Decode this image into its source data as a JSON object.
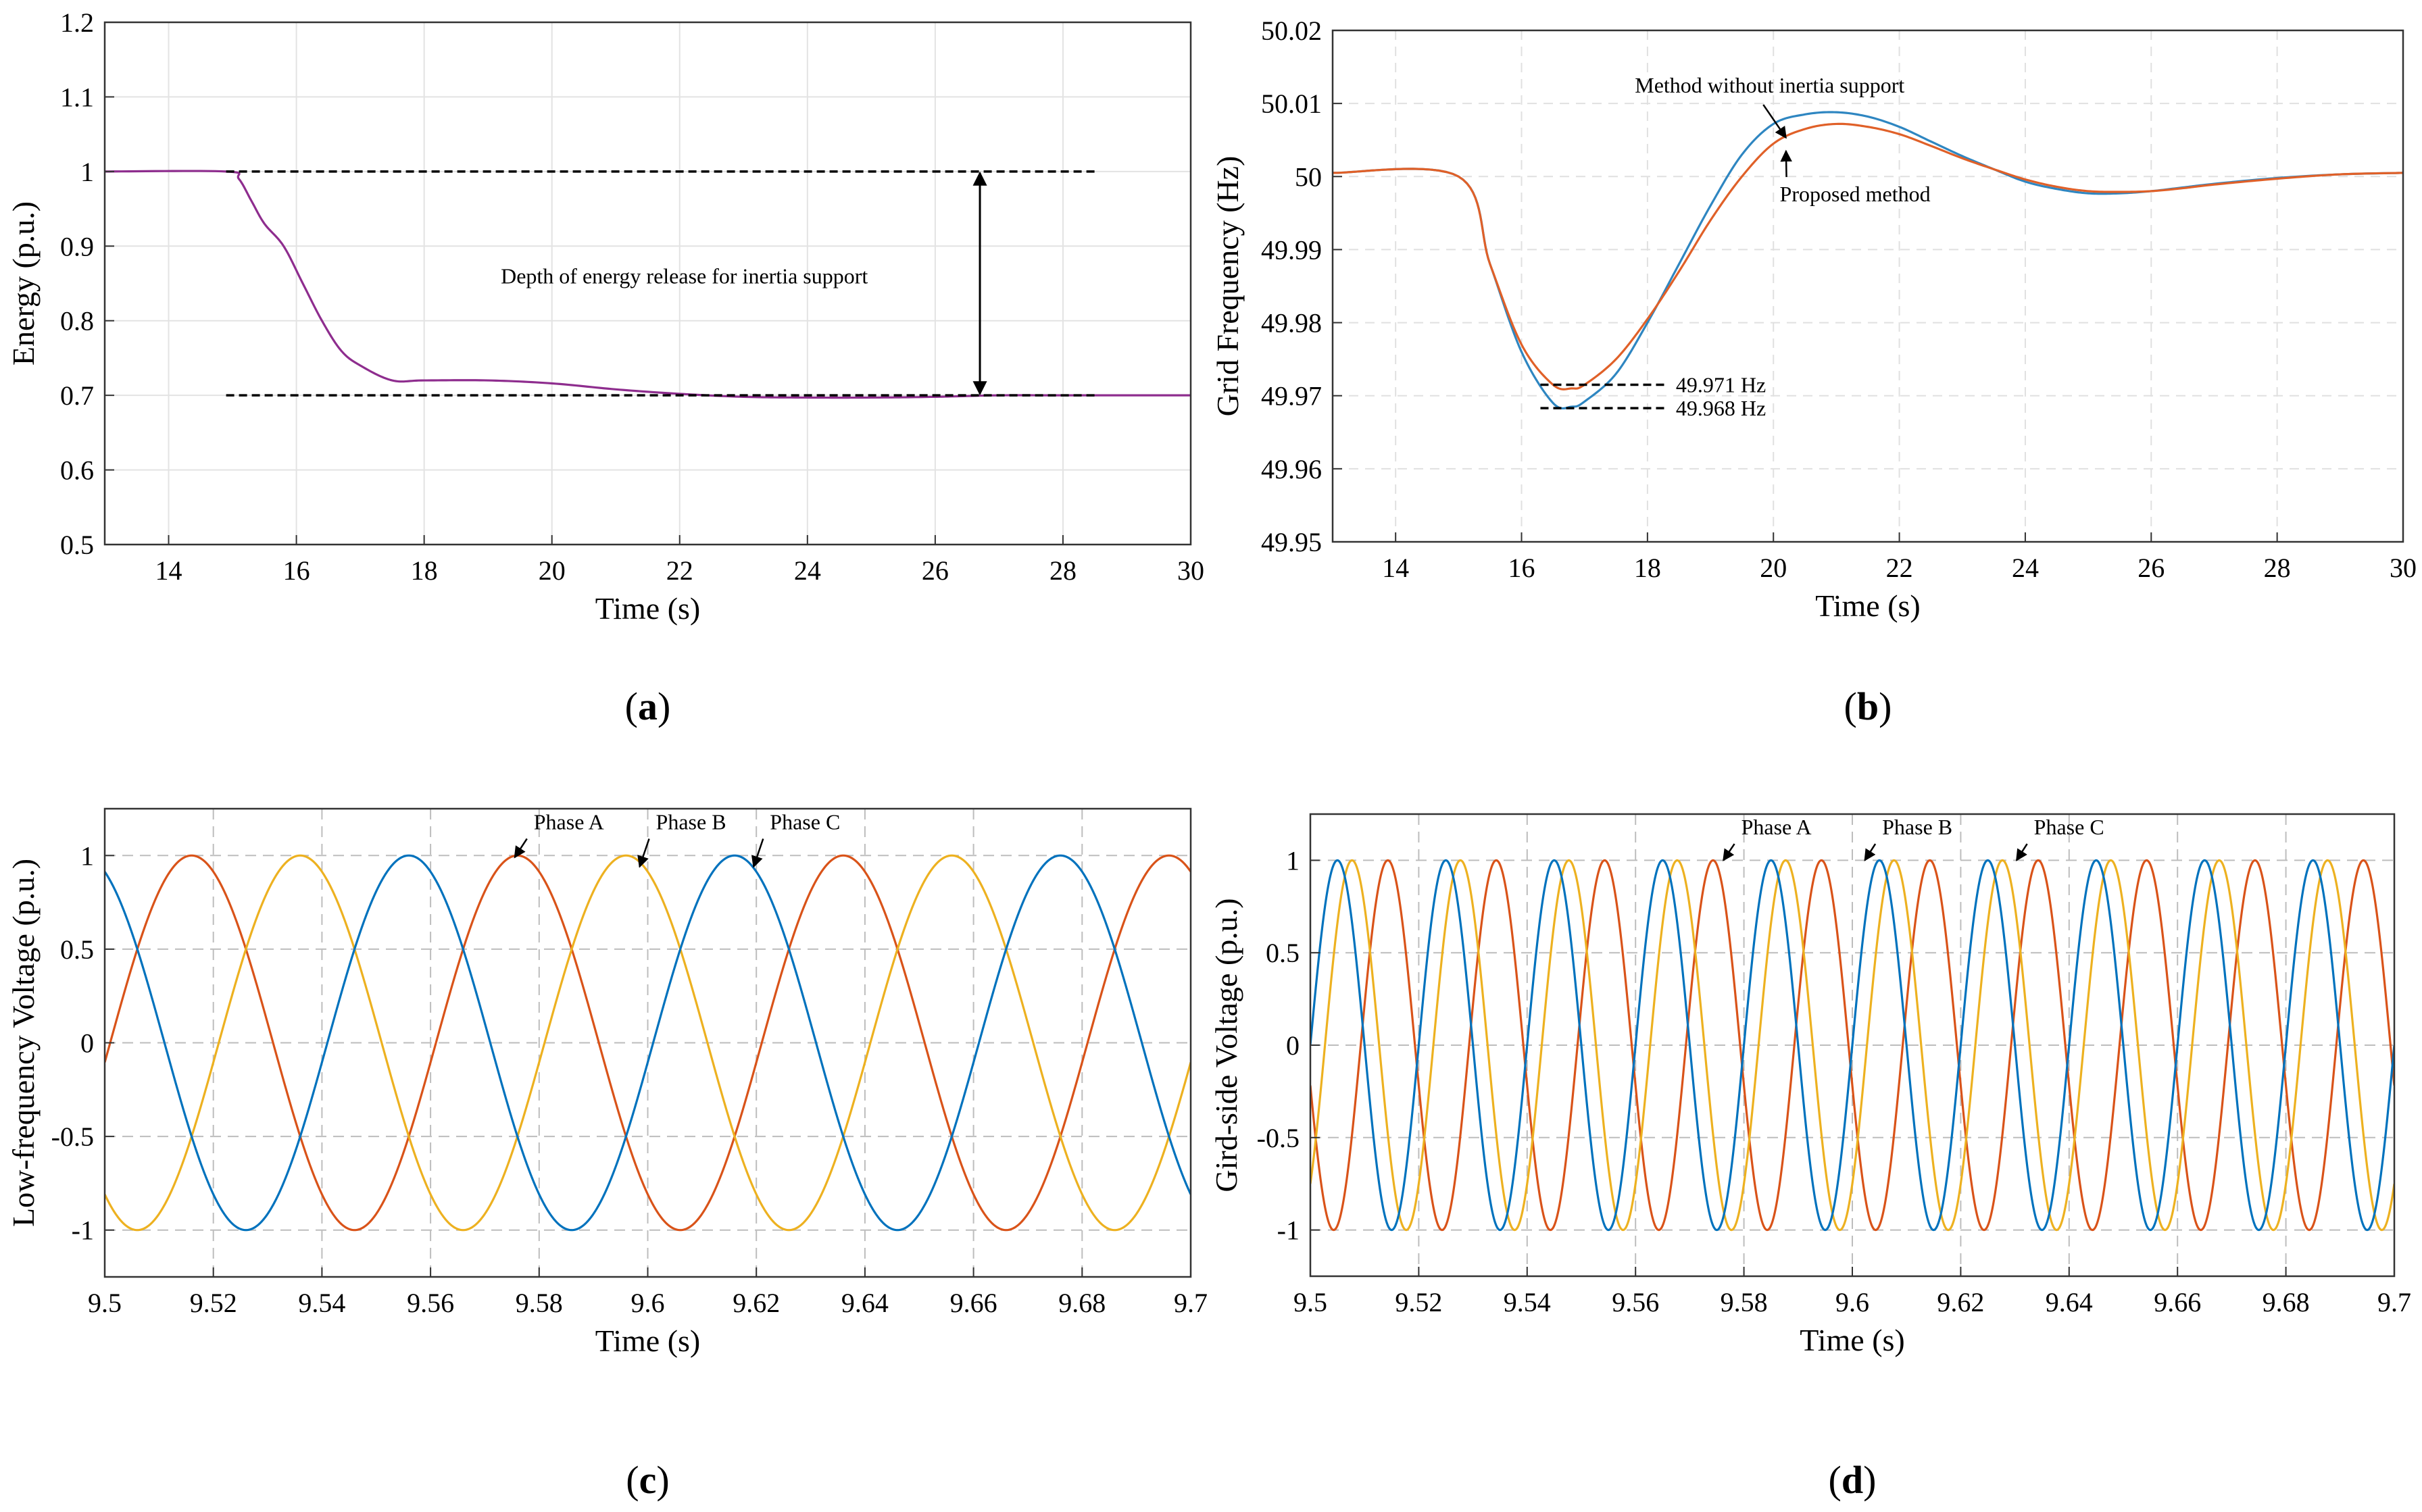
{
  "chart_data": [
    {
      "id": "a",
      "type": "line",
      "caption": "a",
      "xlabel": "Time (s)",
      "ylabel": "Energy (p.u.)",
      "xlim": [
        13,
        30
      ],
      "ylim": [
        0.5,
        1.2
      ],
      "xticks": [
        14,
        16,
        18,
        20,
        22,
        24,
        26,
        28,
        30
      ],
      "xtick_labels": [
        "14",
        "16",
        "18",
        "20",
        "22",
        "24",
        "26",
        "28",
        "30"
      ],
      "yticks": [
        0.5,
        0.6,
        0.7,
        0.8,
        0.9,
        1,
        1.1,
        1.2
      ],
      "ytick_labels": [
        "0.5",
        "0.6",
        "0.7",
        "0.8",
        "0.9",
        "1",
        "1.1",
        "1.2"
      ],
      "grid": "solid-light",
      "series": [
        {
          "name": "Energy",
          "color": "#8e2d8e",
          "x": [
            13,
            14.9,
            15.1,
            15.3,
            15.5,
            15.8,
            16.1,
            16.4,
            16.7,
            17.0,
            17.5,
            18.0,
            19.0,
            20.0,
            21.0,
            22.0,
            23.0,
            24.0,
            25.0,
            26.0,
            27.0,
            28.0,
            30.0
          ],
          "y": [
            1.0,
            1.0,
            0.99,
            0.96,
            0.93,
            0.9,
            0.85,
            0.8,
            0.76,
            0.74,
            0.72,
            0.72,
            0.72,
            0.716,
            0.708,
            0.702,
            0.698,
            0.697,
            0.697,
            0.698,
            0.7,
            0.7,
            0.7
          ]
        }
      ],
      "reference_lines": [
        {
          "x1": 14.9,
          "x2": 28.5,
          "y": 1.0,
          "style": "dashed"
        },
        {
          "x1": 14.9,
          "x2": 28.5,
          "y": 0.7,
          "style": "dashed"
        }
      ],
      "arrow": {
        "x": 26.7,
        "y1": 1.0,
        "y2": 0.7,
        "double_headed": true
      },
      "annotations": [
        {
          "text": "Depth of energy release for inertia support",
          "x": 19.2,
          "y": 0.85
        }
      ]
    },
    {
      "id": "b",
      "type": "line",
      "caption": "b",
      "xlabel": "Time (s)",
      "ylabel": "Grid Frequency (Hz)",
      "xlim": [
        13,
        30
      ],
      "ylim": [
        49.95,
        50.02
      ],
      "xticks": [
        14,
        16,
        18,
        20,
        22,
        24,
        26,
        28,
        30
      ],
      "xtick_labels": [
        "14",
        "16",
        "18",
        "20",
        "22",
        "24",
        "26",
        "28",
        "30"
      ],
      "yticks": [
        49.95,
        49.96,
        49.97,
        49.98,
        49.99,
        50.0,
        50.01,
        50.02
      ],
      "ytick_labels": [
        "49.95",
        "49.96",
        "49.97",
        "49.98",
        "49.99",
        "50",
        "50.01",
        "50.02"
      ],
      "grid": "dashed-light",
      "series": [
        {
          "name": "Method without inertia support",
          "color": "#2e86c1",
          "x": [
            13,
            15.0,
            15.5,
            16.0,
            16.5,
            16.8,
            17.0,
            17.5,
            18.0,
            18.5,
            19.0,
            19.5,
            20.0,
            20.5,
            21.0,
            21.5,
            22.0,
            22.5,
            23.0,
            23.5,
            24.0,
            24.5,
            25.0,
            25.5,
            26.0,
            26.5,
            27.0,
            28.0,
            29.0,
            30.0
          ],
          "y": [
            50.0005,
            50.0,
            49.988,
            49.976,
            49.969,
            49.9685,
            49.9692,
            49.973,
            49.98,
            49.988,
            49.996,
            50.003,
            50.0072,
            50.0085,
            50.0088,
            50.0082,
            50.0068,
            50.0048,
            50.0028,
            50.001,
            49.9993,
            49.9983,
            49.9977,
            49.9977,
            49.998,
            49.9985,
            49.999,
            49.9998,
            50.0003,
            50.0005
          ]
        },
        {
          "name": "Proposed method",
          "color": "#e06028",
          "x": [
            13,
            15.0,
            15.5,
            16.0,
            16.5,
            16.8,
            17.0,
            17.5,
            18.0,
            18.5,
            19.0,
            19.5,
            20.0,
            20.5,
            21.0,
            21.5,
            22.0,
            22.5,
            23.0,
            23.5,
            24.0,
            24.5,
            25.0,
            25.5,
            26.0,
            26.5,
            27.0,
            28.0,
            29.0,
            30.0
          ],
          "y": [
            50.0005,
            50.0,
            49.988,
            49.977,
            49.9715,
            49.971,
            49.9715,
            49.975,
            49.9805,
            49.987,
            49.994,
            50.0,
            50.0045,
            50.0065,
            50.0072,
            50.0068,
            50.0058,
            50.0042,
            50.0025,
            50.001,
            49.9996,
            49.9986,
            49.998,
            49.9979,
            49.998,
            49.9984,
            49.9989,
            49.9997,
            50.0003,
            50.0005
          ]
        }
      ],
      "reference_lines": [
        {
          "x1": 16.3,
          "x2": 18.3,
          "y": 49.9715,
          "style": "dashed",
          "label": "49.971 Hz"
        },
        {
          "x1": 16.3,
          "x2": 18.3,
          "y": 49.9683,
          "style": "dashed",
          "label": "49.968 Hz"
        }
      ],
      "annotations": [
        {
          "text": "Method without inertia support",
          "x": 17.8,
          "y": 50.0115,
          "arrow_to": [
            20.2,
            50.0053
          ]
        },
        {
          "text": "Proposed method",
          "x": 20.1,
          "y": 49.9966,
          "arrow_to": [
            20.2,
            50.0035
          ]
        }
      ]
    },
    {
      "id": "c",
      "type": "line",
      "caption": "c",
      "xlabel": "Time (s)",
      "ylabel": "Low-frequency Voltage (p.u.)",
      "xlim": [
        9.5,
        9.7
      ],
      "ylim": [
        -1.25,
        1.25
      ],
      "xticks": [
        9.5,
        9.52,
        9.54,
        9.56,
        9.58,
        9.6,
        9.62,
        9.64,
        9.66,
        9.68,
        9.7
      ],
      "xtick_labels": [
        "9.5",
        "9.52",
        "9.54",
        "9.56",
        "9.58",
        "9.6",
        "9.62",
        "9.64",
        "9.66",
        "9.68",
        "9.7"
      ],
      "yticks": [
        -1,
        -0.5,
        0,
        0.5,
        1
      ],
      "ytick_labels": [
        "-1",
        "-0.5",
        "0",
        "0.5",
        "1"
      ],
      "grid": "dashed-gray",
      "waveform": {
        "period": 0.06,
        "amplitude": 1
      },
      "series": [
        {
          "name": "Phase A",
          "color": "#d95319",
          "peak_time": 9.516
        },
        {
          "name": "Phase B",
          "color": "#edb120",
          "peak_time": 9.536
        },
        {
          "name": "Phase C",
          "color": "#0072bd",
          "peak_time": 9.556
        }
      ],
      "annotations": [
        {
          "text": "Phase A",
          "x": 9.579,
          "y": 1.14,
          "arrow_to": [
            9.5755,
            0.99
          ]
        },
        {
          "text": "Phase B",
          "x": 9.6015,
          "y": 1.14,
          "arrow_to": [
            9.5985,
            0.94
          ]
        },
        {
          "text": "Phase C",
          "x": 9.6225,
          "y": 1.14,
          "arrow_to": [
            9.6195,
            0.94
          ]
        }
      ]
    },
    {
      "id": "d",
      "type": "line",
      "caption": "d",
      "xlabel": "Time (s)",
      "ylabel": "Gird-side Voltage (p.u.)",
      "xlim": [
        9.5,
        9.7
      ],
      "ylim": [
        -1.25,
        1.25
      ],
      "xticks": [
        9.5,
        9.52,
        9.54,
        9.56,
        9.58,
        9.6,
        9.62,
        9.64,
        9.66,
        9.68,
        9.7
      ],
      "xtick_labels": [
        "9.5",
        "9.52",
        "9.54",
        "9.56",
        "9.58",
        "9.6",
        "9.62",
        "9.64",
        "9.66",
        "9.68",
        "9.7"
      ],
      "yticks": [
        -1,
        -0.5,
        0,
        0.5,
        1
      ],
      "ytick_labels": [
        "-1",
        "-0.5",
        "0",
        "0.5",
        "1"
      ],
      "grid": "dashed-gray",
      "waveform": {
        "period": 0.02,
        "amplitude": 1
      },
      "series": [
        {
          "name": "Phase A",
          "color": "#d95319",
          "peak_time": 9.5143
        },
        {
          "name": "Phase B",
          "color": "#edb120",
          "peak_time": 9.5077
        },
        {
          "name": "Phase C",
          "color": "#0072bd",
          "peak_time": 9.505
        }
      ],
      "annotations": [
        {
          "text": "Phase A",
          "x": 9.5795,
          "y": 1.14,
          "arrow_to": [
            9.5762,
            1.0
          ]
        },
        {
          "text": "Phase B",
          "x": 9.6055,
          "y": 1.14,
          "arrow_to": [
            9.6023,
            1.0
          ]
        },
        {
          "text": "Phase C",
          "x": 9.6335,
          "y": 1.14,
          "arrow_to": [
            9.6303,
            1.0
          ]
        }
      ]
    }
  ]
}
